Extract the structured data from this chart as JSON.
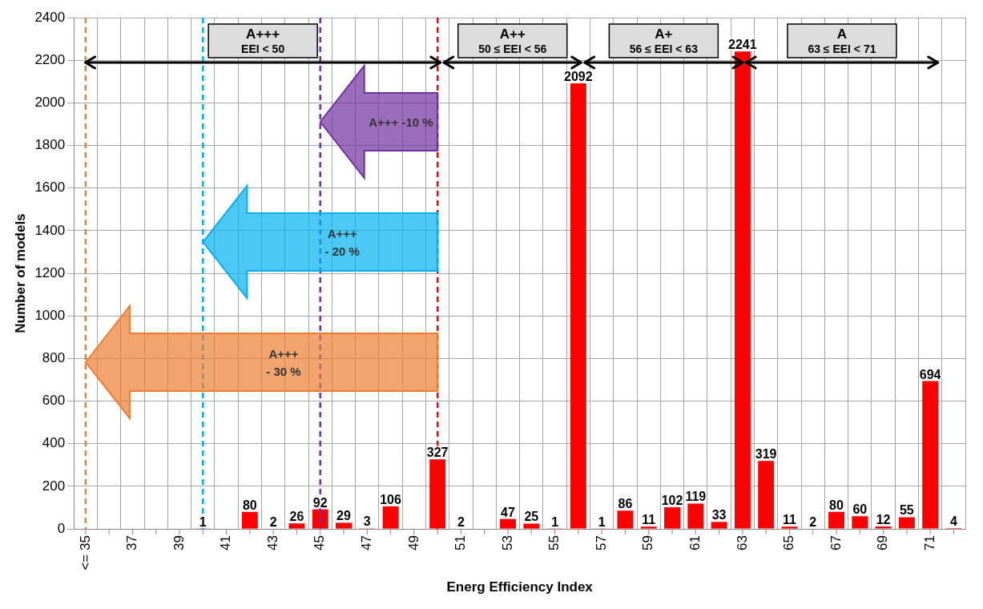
{
  "chart_data": {
    "type": "bar",
    "xlabel": "Energ Efficiency Index",
    "ylabel": "Number of models",
    "series": [
      {
        "color": "#ff0000",
        "x": [
          40,
          42,
          43,
          44,
          45,
          46,
          47,
          48,
          50,
          51,
          53,
          54,
          55,
          56,
          57,
          58,
          59,
          60,
          61,
          62,
          63,
          64,
          65,
          66,
          67,
          68,
          69,
          70,
          71,
          72
        ],
        "values": [
          1,
          80,
          2,
          26,
          92,
          29,
          3,
          106,
          327,
          2,
          47,
          25,
          1,
          2092,
          1,
          86,
          11,
          102,
          119,
          33,
          2241,
          319,
          11,
          2,
          80,
          60,
          12,
          55,
          694,
          4
        ],
        "value_labels": [
          "1",
          "80",
          "2",
          "26",
          "92",
          "29",
          "3",
          "106",
          "327",
          "2",
          "47",
          "25",
          "1",
          "2092",
          "1",
          "86",
          "11",
          "102",
          "119",
          "33",
          "2241",
          "319",
          "11",
          "2",
          "80",
          "60",
          "12",
          "55",
          "694",
          "4"
        ]
      }
    ],
    "xlim": [
      34.5,
      72.5
    ],
    "xticks": [
      {
        "value": 35,
        "label": "<= 35"
      },
      {
        "value": 36,
        "label": null
      },
      37,
      {
        "value": 38,
        "label": null
      },
      39,
      {
        "value": 40,
        "label": null
      },
      41,
      {
        "value": 42,
        "label": null
      },
      43,
      {
        "value": 44,
        "label": null
      },
      45,
      {
        "value": 46,
        "label": null
      },
      47,
      {
        "value": 48,
        "label": null
      },
      49,
      {
        "value": 50,
        "label": null
      },
      51,
      {
        "value": 52,
        "label": null
      },
      53,
      {
        "value": 54,
        "label": null
      },
      55,
      {
        "value": 56,
        "label": null
      },
      57,
      {
        "value": 58,
        "label": null
      },
      59,
      {
        "value": 60,
        "label": null
      },
      61,
      {
        "value": 62,
        "label": null
      },
      63,
      {
        "value": 64,
        "label": null
      },
      65,
      {
        "value": 66,
        "label": null
      },
      67,
      {
        "value": 68,
        "label": null
      },
      69,
      {
        "value": 70,
        "label": null
      },
      71,
      {
        "value": 72,
        "label": null
      }
    ],
    "ylim": [
      0,
      2400
    ],
    "yticks": [
      0,
      200,
      400,
      600,
      800,
      1000,
      1200,
      1400,
      1600,
      1800,
      2000,
      2200,
      2400
    ],
    "grid": true,
    "ref_lines": [
      {
        "axis": "x",
        "value": 45,
        "color": "#7030a0",
        "line_style": "dashed"
      },
      {
        "axis": "x",
        "value": 40,
        "color": "#00b0f0",
        "line_style": "dashed"
      },
      {
        "axis": "x",
        "value": 35,
        "color": "#ed7d31",
        "line_style": "dashed"
      },
      {
        "axis": "x",
        "value": 50,
        "color": "#ff0000",
        "line_style": "dashed"
      }
    ],
    "annotations": [
      "A+++\nEEI < 50",
      "A++\n50 ≤ EEI < 56",
      "A+\n56 ≤ EEI < 63",
      "A\n63 ≤ EEI < 71",
      "A+++  -10 %",
      "A+++\n- 20 %",
      "A+++\n- 30 %"
    ]
  }
}
